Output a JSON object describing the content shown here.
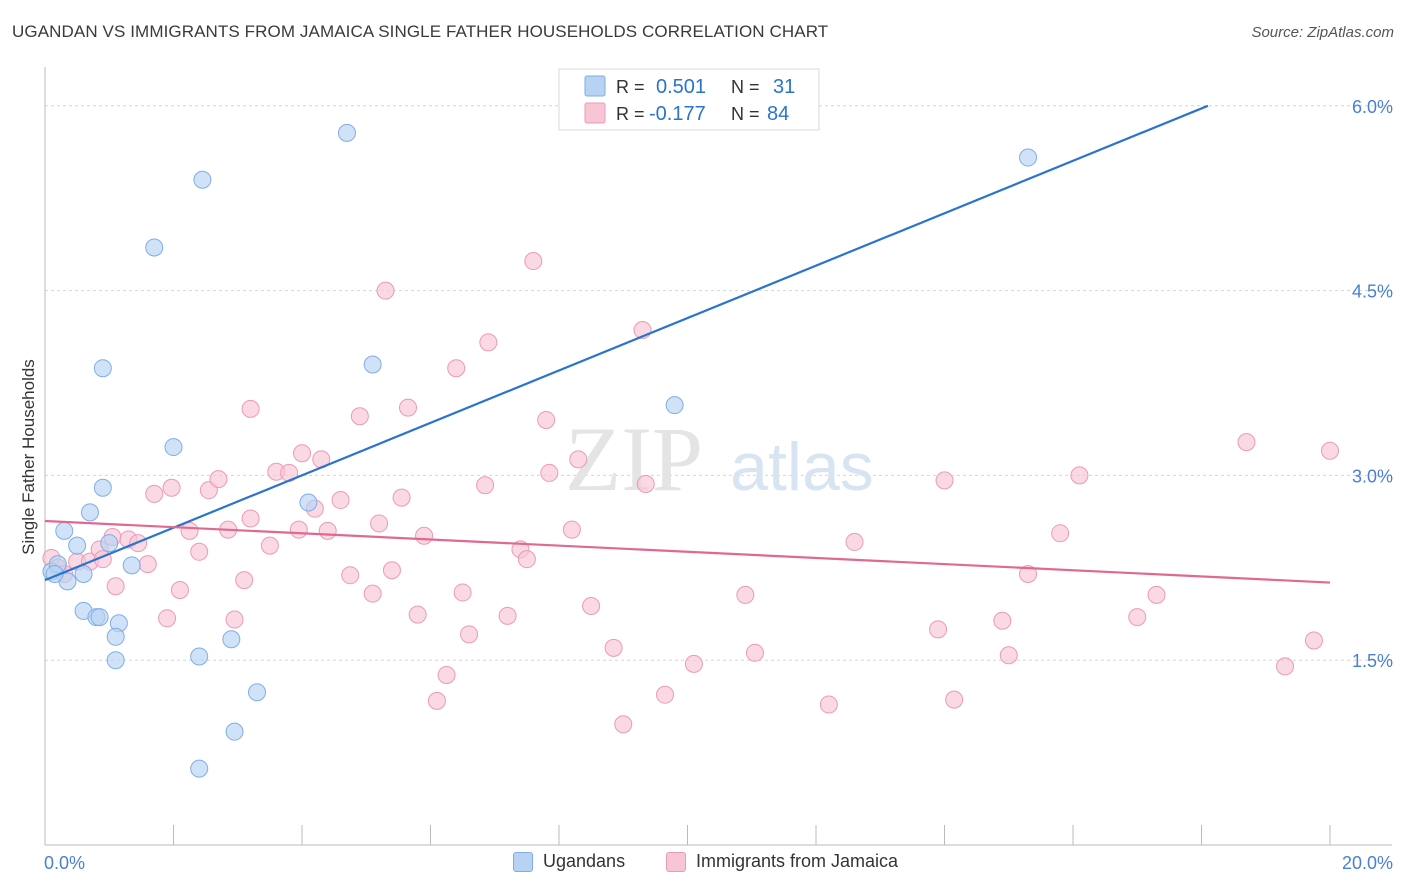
{
  "title": "UGANDAN VS IMMIGRANTS FROM JAMAICA SINGLE FATHER HOUSEHOLDS CORRELATION CHART",
  "source": "Source: ZipAtlas.com",
  "watermark": {
    "zip": "ZIP",
    "atlas": "atlas"
  },
  "colors": {
    "blue_fill": "#b7d2f3",
    "blue_stroke": "#7faee6",
    "blue_line": "#2a73d0",
    "pink_fill": "#f8c5d5",
    "pink_stroke": "#ec9ab5",
    "pink_line": "#e06891",
    "axis_text": "#4a7fd1",
    "grid": "#d5d5d5"
  },
  "legend_top": {
    "rows": [
      {
        "r_label": "R =",
        "r_value": "0.501",
        "n_label": "N =",
        "n_value": "31"
      },
      {
        "r_label": "R =",
        "r_value": "-0.177",
        "n_label": "N =",
        "n_value": "84"
      }
    ]
  },
  "legend_bottom": [
    "Ugandans",
    "Immigrants from Jamaica"
  ],
  "chart_data": {
    "type": "scatter",
    "title": "UGANDAN VS IMMIGRANTS FROM JAMAICA SINGLE FATHER HOUSEHOLDS CORRELATION CHART",
    "xlabel": "",
    "ylabel": "Single Father Households",
    "xlim": [
      0,
      20
    ],
    "ylim": [
      0,
      6.25
    ],
    "x_tick_labels": [
      "0.0%",
      "20.0%"
    ],
    "y_ticks": [
      1.5,
      3.0,
      4.5,
      6.0
    ],
    "y_tick_labels": [
      "1.5%",
      "3.0%",
      "4.5%",
      "6.0%"
    ],
    "grid": true,
    "legend_position": "top-center",
    "series": [
      {
        "name": "Ugandans",
        "r": 0.501,
        "n": 31,
        "trend": {
          "x": [
            0.0,
            18.1
          ],
          "y": [
            2.15,
            6.0
          ]
        },
        "points": [
          [
            0.1,
            2.22
          ],
          [
            0.2,
            2.28
          ],
          [
            0.3,
            2.55
          ],
          [
            0.5,
            2.43
          ],
          [
            0.6,
            2.2
          ],
          [
            0.7,
            2.7
          ],
          [
            0.9,
            2.9
          ],
          [
            0.35,
            2.14
          ],
          [
            0.6,
            1.9
          ],
          [
            0.8,
            1.85
          ],
          [
            0.85,
            1.85
          ],
          [
            1.0,
            2.45
          ],
          [
            1.15,
            1.8
          ],
          [
            1.1,
            1.69
          ],
          [
            1.35,
            2.27
          ],
          [
            1.1,
            1.5
          ],
          [
            0.9,
            3.87
          ],
          [
            1.7,
            4.85
          ],
          [
            2.0,
            3.23
          ],
          [
            2.45,
            5.4
          ],
          [
            2.4,
            1.53
          ],
          [
            2.9,
            1.67
          ],
          [
            3.3,
            1.24
          ],
          [
            2.95,
            0.92
          ],
          [
            2.4,
            0.62
          ],
          [
            4.7,
            5.78
          ],
          [
            5.1,
            3.9
          ],
          [
            4.1,
            2.78
          ],
          [
            9.8,
            3.57
          ],
          [
            15.3,
            5.58
          ],
          [
            0.15,
            2.2
          ]
        ]
      },
      {
        "name": "Immigrants from Jamaica",
        "r": -0.177,
        "n": 84,
        "trend": {
          "x": [
            0.0,
            20.0
          ],
          "y": [
            2.63,
            2.13
          ]
        },
        "points": [
          [
            0.1,
            2.33
          ],
          [
            0.2,
            2.25
          ],
          [
            0.3,
            2.2
          ],
          [
            0.5,
            2.3
          ],
          [
            0.7,
            2.3
          ],
          [
            0.85,
            2.4
          ],
          [
            0.9,
            2.32
          ],
          [
            1.05,
            2.5
          ],
          [
            1.1,
            2.1
          ],
          [
            1.3,
            2.48
          ],
          [
            1.45,
            2.45
          ],
          [
            1.6,
            2.28
          ],
          [
            1.7,
            2.85
          ],
          [
            1.9,
            1.84
          ],
          [
            1.97,
            2.9
          ],
          [
            2.1,
            2.07
          ],
          [
            2.25,
            2.55
          ],
          [
            2.4,
            2.38
          ],
          [
            2.55,
            2.88
          ],
          [
            2.7,
            2.97
          ],
          [
            2.85,
            2.56
          ],
          [
            2.95,
            1.83
          ],
          [
            3.1,
            2.15
          ],
          [
            3.2,
            3.54
          ],
          [
            3.2,
            2.65
          ],
          [
            3.5,
            2.43
          ],
          [
            3.6,
            3.03
          ],
          [
            3.8,
            3.02
          ],
          [
            3.95,
            2.56
          ],
          [
            4.0,
            3.18
          ],
          [
            4.2,
            2.73
          ],
          [
            4.3,
            3.13
          ],
          [
            4.4,
            2.55
          ],
          [
            4.6,
            2.8
          ],
          [
            4.75,
            2.19
          ],
          [
            4.9,
            3.48
          ],
          [
            5.1,
            2.04
          ],
          [
            5.2,
            2.61
          ],
          [
            5.3,
            4.5
          ],
          [
            5.4,
            2.23
          ],
          [
            5.55,
            2.82
          ],
          [
            5.65,
            3.55
          ],
          [
            5.8,
            1.87
          ],
          [
            5.9,
            2.51
          ],
          [
            6.1,
            1.17
          ],
          [
            6.25,
            1.38
          ],
          [
            6.4,
            3.87
          ],
          [
            6.5,
            2.05
          ],
          [
            6.6,
            1.71
          ],
          [
            6.85,
            2.92
          ],
          [
            6.9,
            4.08
          ],
          [
            7.2,
            1.86
          ],
          [
            7.4,
            2.4
          ],
          [
            7.5,
            2.32
          ],
          [
            7.6,
            4.74
          ],
          [
            7.8,
            3.45
          ],
          [
            7.85,
            3.02
          ],
          [
            8.2,
            2.56
          ],
          [
            8.3,
            3.13
          ],
          [
            8.5,
            1.94
          ],
          [
            8.85,
            1.6
          ],
          [
            9.0,
            0.98
          ],
          [
            9.35,
            2.93
          ],
          [
            9.3,
            4.18
          ],
          [
            9.65,
            1.22
          ],
          [
            10.1,
            1.47
          ],
          [
            10.9,
            2.03
          ],
          [
            11.05,
            1.56
          ],
          [
            12.2,
            1.14
          ],
          [
            12.6,
            2.46
          ],
          [
            13.9,
            1.75
          ],
          [
            14.0,
            2.96
          ],
          [
            14.15,
            1.18
          ],
          [
            14.9,
            1.82
          ],
          [
            15.0,
            1.54
          ],
          [
            15.3,
            2.2
          ],
          [
            15.8,
            2.53
          ],
          [
            16.1,
            3.0
          ],
          [
            17.0,
            1.85
          ],
          [
            17.3,
            2.03
          ],
          [
            18.7,
            3.27
          ],
          [
            19.3,
            1.45
          ],
          [
            19.75,
            1.66
          ],
          [
            20.0,
            3.2
          ]
        ]
      }
    ]
  }
}
